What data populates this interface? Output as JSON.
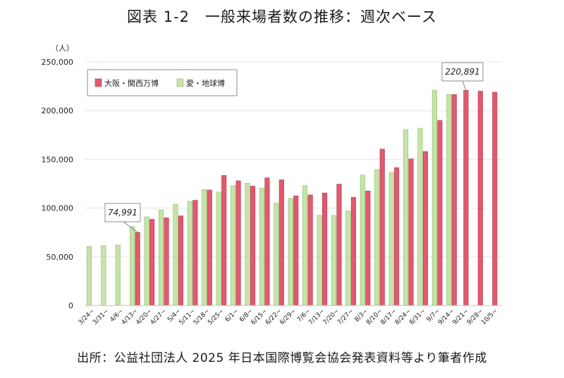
{
  "title": "図表 1-2　一般来場者数の推移：週次ベース",
  "source": "出所：公益社団法人 2025 年日本国際博覧会協会発表資料等より筆者作成",
  "colors": {
    "osaka": "#E05A6E",
    "aichi": "#C6E3A9",
    "aichi_stroke": "#8DBF6A",
    "osaka_stroke": "#B03A4E"
  },
  "chart_data": {
    "type": "bar",
    "title": "図表 1-2　一般来場者数の推移：週次ベース",
    "ylabel": "（人）",
    "ylim": [
      0,
      250000
    ],
    "yticks": [
      "0",
      "50,000",
      "100,000",
      "150,000",
      "200,000",
      "250,000"
    ],
    "ytick_values": [
      0,
      50000,
      100000,
      150000,
      200000,
      250000
    ],
    "categories": [
      "3/24~",
      "3/31~",
      "4/6~",
      "4/13~",
      "4/20~",
      "4/27~",
      "5/4~",
      "5/11~",
      "5/18~",
      "5/25~",
      "6/1~",
      "6/8~",
      "6/15~",
      "6/22~",
      "6/29~",
      "7/6~",
      "7/13~",
      "7/20~",
      "7/27~",
      "8/3~",
      "8/10~",
      "8/17~",
      "8/24~",
      "8/31~",
      "9/7~",
      "9/14~",
      "9/21~",
      "9/28~",
      "10/5~"
    ],
    "series": [
      {
        "name": "愛・地球博",
        "key": "aichi",
        "values": [
          60500,
          61500,
          62000,
          81000,
          91000,
          98000,
          104000,
          107000,
          119000,
          116500,
          123000,
          125500,
          120500,
          105000,
          110000,
          123000,
          92500,
          92500,
          97000,
          134000,
          139500,
          136500,
          180500,
          182000,
          221000,
          216500,
          null,
          null,
          null
        ]
      },
      {
        "name": "大阪・関西万博",
        "key": "osaka",
        "values": [
          null,
          null,
          null,
          74991,
          88500,
          90000,
          92000,
          108000,
          118500,
          133500,
          128000,
          122500,
          131000,
          129000,
          112500,
          113500,
          115500,
          124500,
          111000,
          117500,
          160500,
          141500,
          150500,
          158000,
          190000,
          216500,
          220891,
          220000,
          219000
        ]
      }
    ],
    "legend": {
      "position": "top-left",
      "entries": [
        "大阪・関西万博",
        "愛・地球博"
      ]
    },
    "annotations": [
      {
        "text": "74,991",
        "category": "4/13~",
        "value": 74991
      },
      {
        "text": "220,891",
        "category": "9/21~",
        "value": 220891
      }
    ]
  }
}
